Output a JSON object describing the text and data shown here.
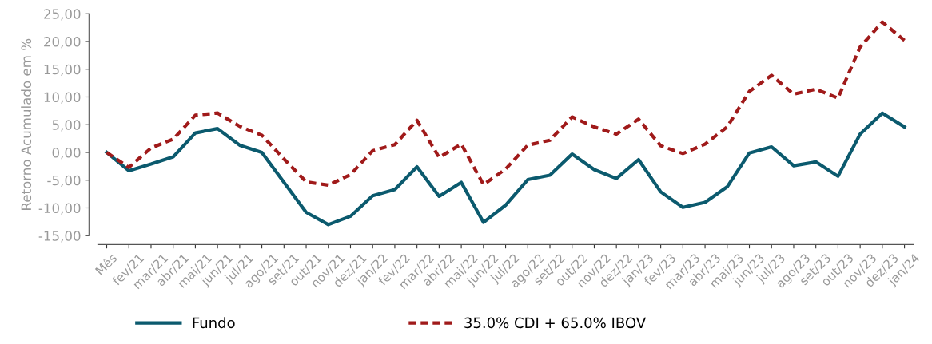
{
  "chart_data": {
    "type": "line",
    "ylabel": "Retorno Acumulado em %",
    "categories": [
      "Mês",
      "fev/21",
      "mar/21",
      "abr/21",
      "mai/21",
      "jun/21",
      "jul/21",
      "ago/21",
      "set/21",
      "out/21",
      "nov/21",
      "dez/21",
      "jan/22",
      "fev/22",
      "mar/22",
      "abr/22",
      "mai/22",
      "jun/22",
      "jul/22",
      "ago/22",
      "set/22",
      "out/22",
      "nov/22",
      "dez/22",
      "jan/23",
      "fev/23",
      "mar/23",
      "abr/23",
      "mai/23",
      "jun/23",
      "jul/23",
      "ago/23",
      "set/23",
      "out/23",
      "nov/23",
      "dez/23",
      "jan/24"
    ],
    "series": [
      {
        "name": "Fundo",
        "color": "#0b5a6e",
        "line_style": "solid",
        "values": [
          0,
          -3.3,
          -2.1,
          -0.8,
          3.5,
          4.3,
          1.3,
          0,
          -5.4,
          -10.8,
          -13.0,
          -11.5,
          -7.8,
          -6.7,
          -2.6,
          -7.9,
          -5.4,
          -12.6,
          -9.5,
          -4.9,
          -4.1,
          -0.3,
          -3.1,
          -4.7,
          -1.3,
          -7.1,
          -9.9,
          -9.0,
          -6.2,
          -0.1,
          1.0,
          -2.4,
          -1.7,
          -4.3,
          3.3,
          7.1,
          4.6
        ]
      },
      {
        "name": "35.0% CDI + 65.0% IBOV",
        "color": "#a01a1a",
        "line_style": "dashed",
        "values": [
          0,
          -2.7,
          0.8,
          2.4,
          6.7,
          7.1,
          4.7,
          3.1,
          -1.2,
          -5.3,
          -5.9,
          -4.0,
          0.3,
          1.4,
          5.8,
          -0.9,
          1.5,
          -5.8,
          -3.0,
          1.3,
          2.2,
          6.4,
          4.6,
          3.3,
          6.0,
          1.2,
          -0.2,
          1.5,
          4.6,
          11.0,
          13.9,
          10.5,
          11.4,
          9.8,
          19.0,
          23.5,
          20.2
        ]
      }
    ],
    "ylim": [
      -15,
      25
    ],
    "yticks": [
      {
        "value": -15,
        "label": "-15,00"
      },
      {
        "value": -10,
        "label": "-10,00"
      },
      {
        "value": -5,
        "label": "-5,00"
      },
      {
        "value": 0,
        "label": "0,00"
      },
      {
        "value": 5,
        "label": "5,00"
      },
      {
        "value": 10,
        "label": "10,00"
      },
      {
        "value": 15,
        "label": "15,00"
      },
      {
        "value": 20,
        "label": "20,00"
      },
      {
        "value": 25,
        "label": "25,00"
      }
    ],
    "grid": false,
    "legend": "bottom",
    "marker": "none"
  }
}
